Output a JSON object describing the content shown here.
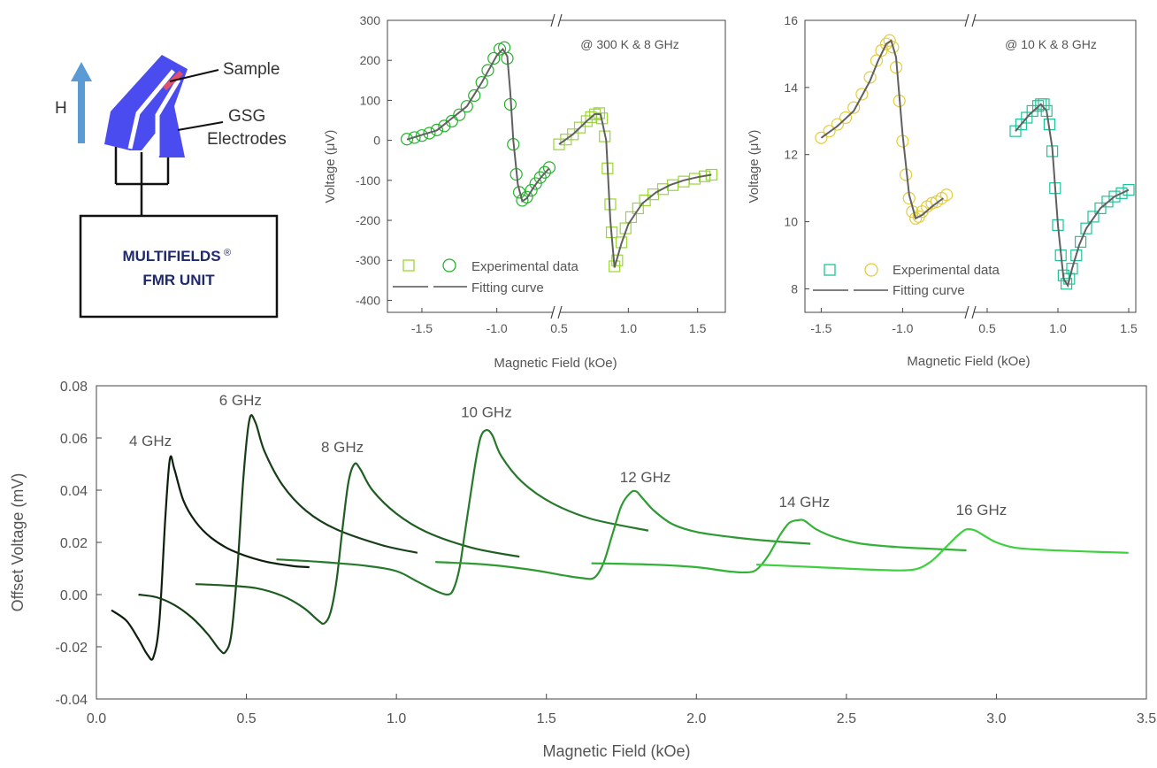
{
  "schematic": {
    "h_label": "H",
    "sample_label": "Sample",
    "electrode_label_1": "GSG",
    "electrode_label_2": "Electrodes",
    "unit_line_1": "MULTIFIELDS",
    "unit_registered": "®",
    "unit_line_2": "FMR UNIT",
    "electrode_color": "#4b4cf0",
    "sample_color": "#e0506a",
    "arrow_color": "#5b9bd5",
    "unit_text_color": "#1f2a6b"
  },
  "chart_data": [
    {
      "type": "line",
      "annotation": "@ 300 K & 8 GHz",
      "xlabel": "Magnetic Field (kOe)",
      "ylabel": "Voltage (μV)",
      "ylim": [
        -430,
        300
      ],
      "yticks": [
        "300",
        "200",
        "100",
        "0",
        "-100",
        "-200",
        "-300",
        "-400"
      ],
      "xticks_left": [
        "-1.5",
        "-1.0",
        "0.5"
      ],
      "xticks_right": [
        "1.0",
        "1.5"
      ],
      "broken_x_axis": true,
      "xlim_left": [
        -1.73,
        -0.62
      ],
      "xlim_right": [
        0.5,
        1.7
      ],
      "legend": {
        "position": "bottom-left",
        "entries": [
          "Experimental data",
          "Fitting curve"
        ]
      },
      "colors": {
        "circles": "#22b32a",
        "squares": "#9ad633",
        "fit": "#606060"
      },
      "series": [
        {
          "marker": "circle",
          "segment": "left",
          "x": [
            -1.6,
            -1.55,
            -1.5,
            -1.45,
            -1.4,
            -1.35,
            -1.3,
            -1.25,
            -1.2,
            -1.15,
            -1.1,
            -1.06,
            -1.02,
            -0.98,
            -0.95,
            -0.93,
            -0.91,
            -0.89,
            -0.87,
            -0.85,
            -0.83,
            -0.8,
            -0.77,
            -0.74,
            -0.71,
            -0.68,
            -0.65
          ],
          "y": [
            3,
            7,
            12,
            18,
            26,
            36,
            48,
            64,
            85,
            112,
            145,
            175,
            205,
            228,
            232,
            205,
            90,
            -10,
            -85,
            -130,
            -150,
            -142,
            -125,
            -108,
            -93,
            -80,
            -68
          ]
        },
        {
          "marker": "square",
          "segment": "right",
          "x": [
            0.5,
            0.55,
            0.6,
            0.65,
            0.7,
            0.73,
            0.76,
            0.79,
            0.81,
            0.83,
            0.85,
            0.87,
            0.88,
            0.9,
            0.92,
            0.95,
            0.98,
            1.02,
            1.07,
            1.12,
            1.18,
            1.25,
            1.32,
            1.4,
            1.48,
            1.55,
            1.6
          ],
          "y": [
            -10,
            2,
            15,
            32,
            48,
            58,
            65,
            68,
            55,
            10,
            -70,
            -160,
            -230,
            -315,
            -300,
            -255,
            -220,
            -192,
            -170,
            -150,
            -135,
            -122,
            -112,
            -103,
            -96,
            -90,
            -86
          ]
        }
      ],
      "fit": {
        "left": {
          "x": [
            -1.6,
            -1.4,
            -1.2,
            -1.1,
            -1.0,
            -0.96,
            -0.93,
            -0.91,
            -0.89,
            -0.86,
            -0.83,
            -0.8,
            -0.75,
            -0.7,
            -0.65
          ],
          "y": [
            2,
            25,
            85,
            145,
            212,
            228,
            210,
            120,
            0,
            -110,
            -152,
            -145,
            -115,
            -90,
            -70
          ]
        },
        "right": {
          "x": [
            0.5,
            0.6,
            0.7,
            0.76,
            0.8,
            0.84,
            0.87,
            0.9,
            0.95,
            1.0,
            1.1,
            1.2,
            1.3,
            1.4,
            1.5,
            1.6
          ],
          "y": [
            -10,
            15,
            48,
            66,
            65,
            0,
            -200,
            -318,
            -258,
            -210,
            -158,
            -130,
            -112,
            -100,
            -92,
            -86
          ]
        }
      }
    },
    {
      "type": "line",
      "annotation": "@ 10 K & 8 GHz",
      "xlabel": "Magnetic Field (kOe)",
      "ylabel": "Voltage (μV)",
      "ylim": [
        7.3,
        16
      ],
      "yticks": [
        "16",
        "14",
        "12",
        "10",
        "8"
      ],
      "xticks_left": [
        "-1.5",
        "-1.0",
        "0.5"
      ],
      "xticks_right": [
        "1.0",
        "1.5"
      ],
      "broken_x_axis": true,
      "xlim_left": [
        -1.6,
        -0.6
      ],
      "xlim_right": [
        0.4,
        1.55
      ],
      "legend": {
        "position": "bottom-left",
        "entries": [
          "Experimental data",
          "Fitting curve"
        ]
      },
      "colors": {
        "circles": "#e3cd3a",
        "squares": "#1fc398",
        "fit": "#606060"
      },
      "series": [
        {
          "marker": "circle",
          "segment": "left",
          "x": [
            -1.5,
            -1.45,
            -1.4,
            -1.35,
            -1.3,
            -1.25,
            -1.2,
            -1.16,
            -1.13,
            -1.1,
            -1.08,
            -1.06,
            -1.04,
            -1.02,
            -1.0,
            -0.98,
            -0.96,
            -0.94,
            -0.92,
            -0.9,
            -0.88,
            -0.85,
            -0.82,
            -0.79,
            -0.76,
            -0.73
          ],
          "y": [
            12.5,
            12.7,
            12.9,
            13.1,
            13.4,
            13.8,
            14.3,
            14.8,
            15.1,
            15.3,
            15.4,
            15.2,
            14.6,
            13.6,
            12.4,
            11.4,
            10.7,
            10.3,
            10.1,
            10.15,
            10.3,
            10.45,
            10.55,
            10.6,
            10.7,
            10.8
          ]
        },
        {
          "marker": "square",
          "segment": "right",
          "x": [
            0.7,
            0.74,
            0.78,
            0.82,
            0.86,
            0.88,
            0.9,
            0.92,
            0.94,
            0.96,
            0.98,
            1.0,
            1.02,
            1.04,
            1.06,
            1.08,
            1.1,
            1.13,
            1.16,
            1.2,
            1.25,
            1.3,
            1.35,
            1.4,
            1.45,
            1.5
          ],
          "y": [
            12.7,
            12.9,
            13.1,
            13.3,
            13.45,
            13.5,
            13.5,
            13.3,
            12.9,
            12.1,
            11.0,
            9.9,
            9.0,
            8.4,
            8.15,
            8.3,
            8.6,
            9.0,
            9.4,
            9.8,
            10.15,
            10.4,
            10.6,
            10.75,
            10.85,
            10.95
          ]
        }
      ],
      "fit": {
        "left": {
          "x": [
            -1.5,
            -1.4,
            -1.3,
            -1.2,
            -1.15,
            -1.1,
            -1.07,
            -1.04,
            -1.0,
            -0.96,
            -0.92,
            -0.88,
            -0.82,
            -0.75
          ],
          "y": [
            12.5,
            12.85,
            13.3,
            14.2,
            14.8,
            15.3,
            15.4,
            14.9,
            12.6,
            10.8,
            10.1,
            10.2,
            10.45,
            10.7
          ]
        },
        "right": {
          "x": [
            0.7,
            0.8,
            0.88,
            0.92,
            0.96,
            1.0,
            1.04,
            1.07,
            1.1,
            1.15,
            1.2,
            1.3,
            1.4,
            1.5
          ],
          "y": [
            12.7,
            13.2,
            13.5,
            13.3,
            12.2,
            9.9,
            8.3,
            8.1,
            8.6,
            9.3,
            9.8,
            10.4,
            10.75,
            10.95
          ]
        }
      }
    },
    {
      "type": "line",
      "xlabel": "Magnetic Field (kOe)",
      "ylabel": "Offset Voltage (mV)",
      "xlim": [
        0.0,
        3.5
      ],
      "ylim": [
        -0.04,
        0.08
      ],
      "xticks": [
        "0.0",
        "0.5",
        "1.0",
        "1.5",
        "2.0",
        "2.5",
        "3.0",
        "3.5"
      ],
      "yticks": [
        "0.08",
        "0.06",
        "0.04",
        "0.02",
        "0.00",
        "-0.02",
        "-0.04"
      ],
      "series": [
        {
          "name": "4 GHz",
          "color": "#0d1f0d",
          "x": [
            0.05,
            0.1,
            0.14,
            0.17,
            0.19,
            0.21,
            0.23,
            0.245,
            0.26,
            0.29,
            0.33,
            0.38,
            0.45,
            0.55,
            0.65,
            0.71
          ],
          "y": [
            -0.006,
            -0.01,
            -0.017,
            -0.023,
            -0.024,
            -0.01,
            0.03,
            0.052,
            0.048,
            0.036,
            0.028,
            0.022,
            0.017,
            0.013,
            0.011,
            0.0105
          ]
        },
        {
          "name": "6 GHz",
          "color": "#173f18",
          "x": [
            0.14,
            0.2,
            0.26,
            0.32,
            0.37,
            0.41,
            0.43,
            0.45,
            0.47,
            0.49,
            0.51,
            0.53,
            0.56,
            0.62,
            0.7,
            0.8,
            0.95,
            1.07
          ],
          "y": [
            0.0,
            -0.001,
            -0.004,
            -0.009,
            -0.015,
            -0.021,
            -0.022,
            -0.015,
            0.01,
            0.045,
            0.067,
            0.066,
            0.055,
            0.042,
            0.032,
            0.025,
            0.019,
            0.016
          ]
        },
        {
          "name": "8 GHz",
          "color": "#1f5f22",
          "x": [
            0.33,
            0.43,
            0.53,
            0.62,
            0.69,
            0.74,
            0.76,
            0.78,
            0.8,
            0.82,
            0.84,
            0.86,
            0.88,
            0.92,
            1.0,
            1.1,
            1.25,
            1.41
          ],
          "y": [
            0.004,
            0.0035,
            0.0025,
            -0.0005,
            -0.005,
            -0.01,
            -0.011,
            -0.007,
            0.005,
            0.025,
            0.043,
            0.05,
            0.048,
            0.04,
            0.031,
            0.024,
            0.018,
            0.0145
          ]
        },
        {
          "name": "10 GHz",
          "color": "#277a2b",
          "x": [
            0.6,
            0.75,
            0.9,
            1.0,
            1.07,
            1.13,
            1.17,
            1.19,
            1.21,
            1.23,
            1.26,
            1.28,
            1.3,
            1.32,
            1.35,
            1.42,
            1.52,
            1.65,
            1.84
          ],
          "y": [
            0.0135,
            0.0125,
            0.011,
            0.009,
            0.005,
            0.0015,
            0.0,
            0.002,
            0.01,
            0.025,
            0.048,
            0.06,
            0.063,
            0.061,
            0.053,
            0.043,
            0.035,
            0.029,
            0.0245
          ]
        },
        {
          "name": "12 GHz",
          "color": "#2e9a32",
          "x": [
            1.13,
            1.3,
            1.45,
            1.55,
            1.62,
            1.66,
            1.69,
            1.72,
            1.75,
            1.78,
            1.8,
            1.82,
            1.86,
            1.92,
            2.0,
            2.12,
            2.25,
            2.38
          ],
          "y": [
            0.0125,
            0.0115,
            0.0095,
            0.0075,
            0.0063,
            0.0065,
            0.012,
            0.023,
            0.034,
            0.039,
            0.0395,
            0.037,
            0.032,
            0.027,
            0.024,
            0.022,
            0.0205,
            0.0195
          ]
        },
        {
          "name": "14 GHz",
          "color": "#33b336",
          "x": [
            1.65,
            1.85,
            2.0,
            2.1,
            2.16,
            2.2,
            2.24,
            2.28,
            2.31,
            2.34,
            2.36,
            2.4,
            2.46,
            2.55,
            2.7,
            2.9
          ],
          "y": [
            0.012,
            0.0115,
            0.0105,
            0.009,
            0.0085,
            0.0095,
            0.015,
            0.023,
            0.0275,
            0.0285,
            0.0283,
            0.025,
            0.022,
            0.0195,
            0.018,
            0.017
          ]
        },
        {
          "name": "16 GHz",
          "color": "#3fd03f",
          "x": [
            2.2,
            2.4,
            2.6,
            2.72,
            2.78,
            2.83,
            2.87,
            2.9,
            2.93,
            2.96,
            3.0,
            3.06,
            3.15,
            3.3,
            3.44
          ],
          "y": [
            0.0115,
            0.0105,
            0.0095,
            0.0095,
            0.0125,
            0.018,
            0.0225,
            0.025,
            0.0245,
            0.0225,
            0.02,
            0.018,
            0.0172,
            0.0165,
            0.016
          ]
        }
      ],
      "series_label_positions": [
        {
          "label": "4 GHz",
          "x": 0.18,
          "y": 0.057
        },
        {
          "label": "6 GHz",
          "x": 0.48,
          "y": 0.0725
        },
        {
          "label": "8 GHz",
          "x": 0.82,
          "y": 0.0545
        },
        {
          "label": "10 GHz",
          "x": 1.3,
          "y": 0.068
        },
        {
          "label": "12 GHz",
          "x": 1.83,
          "y": 0.043
        },
        {
          "label": "14 GHz",
          "x": 2.36,
          "y": 0.0335
        },
        {
          "label": "16 GHz",
          "x": 2.95,
          "y": 0.0305
        }
      ]
    }
  ]
}
